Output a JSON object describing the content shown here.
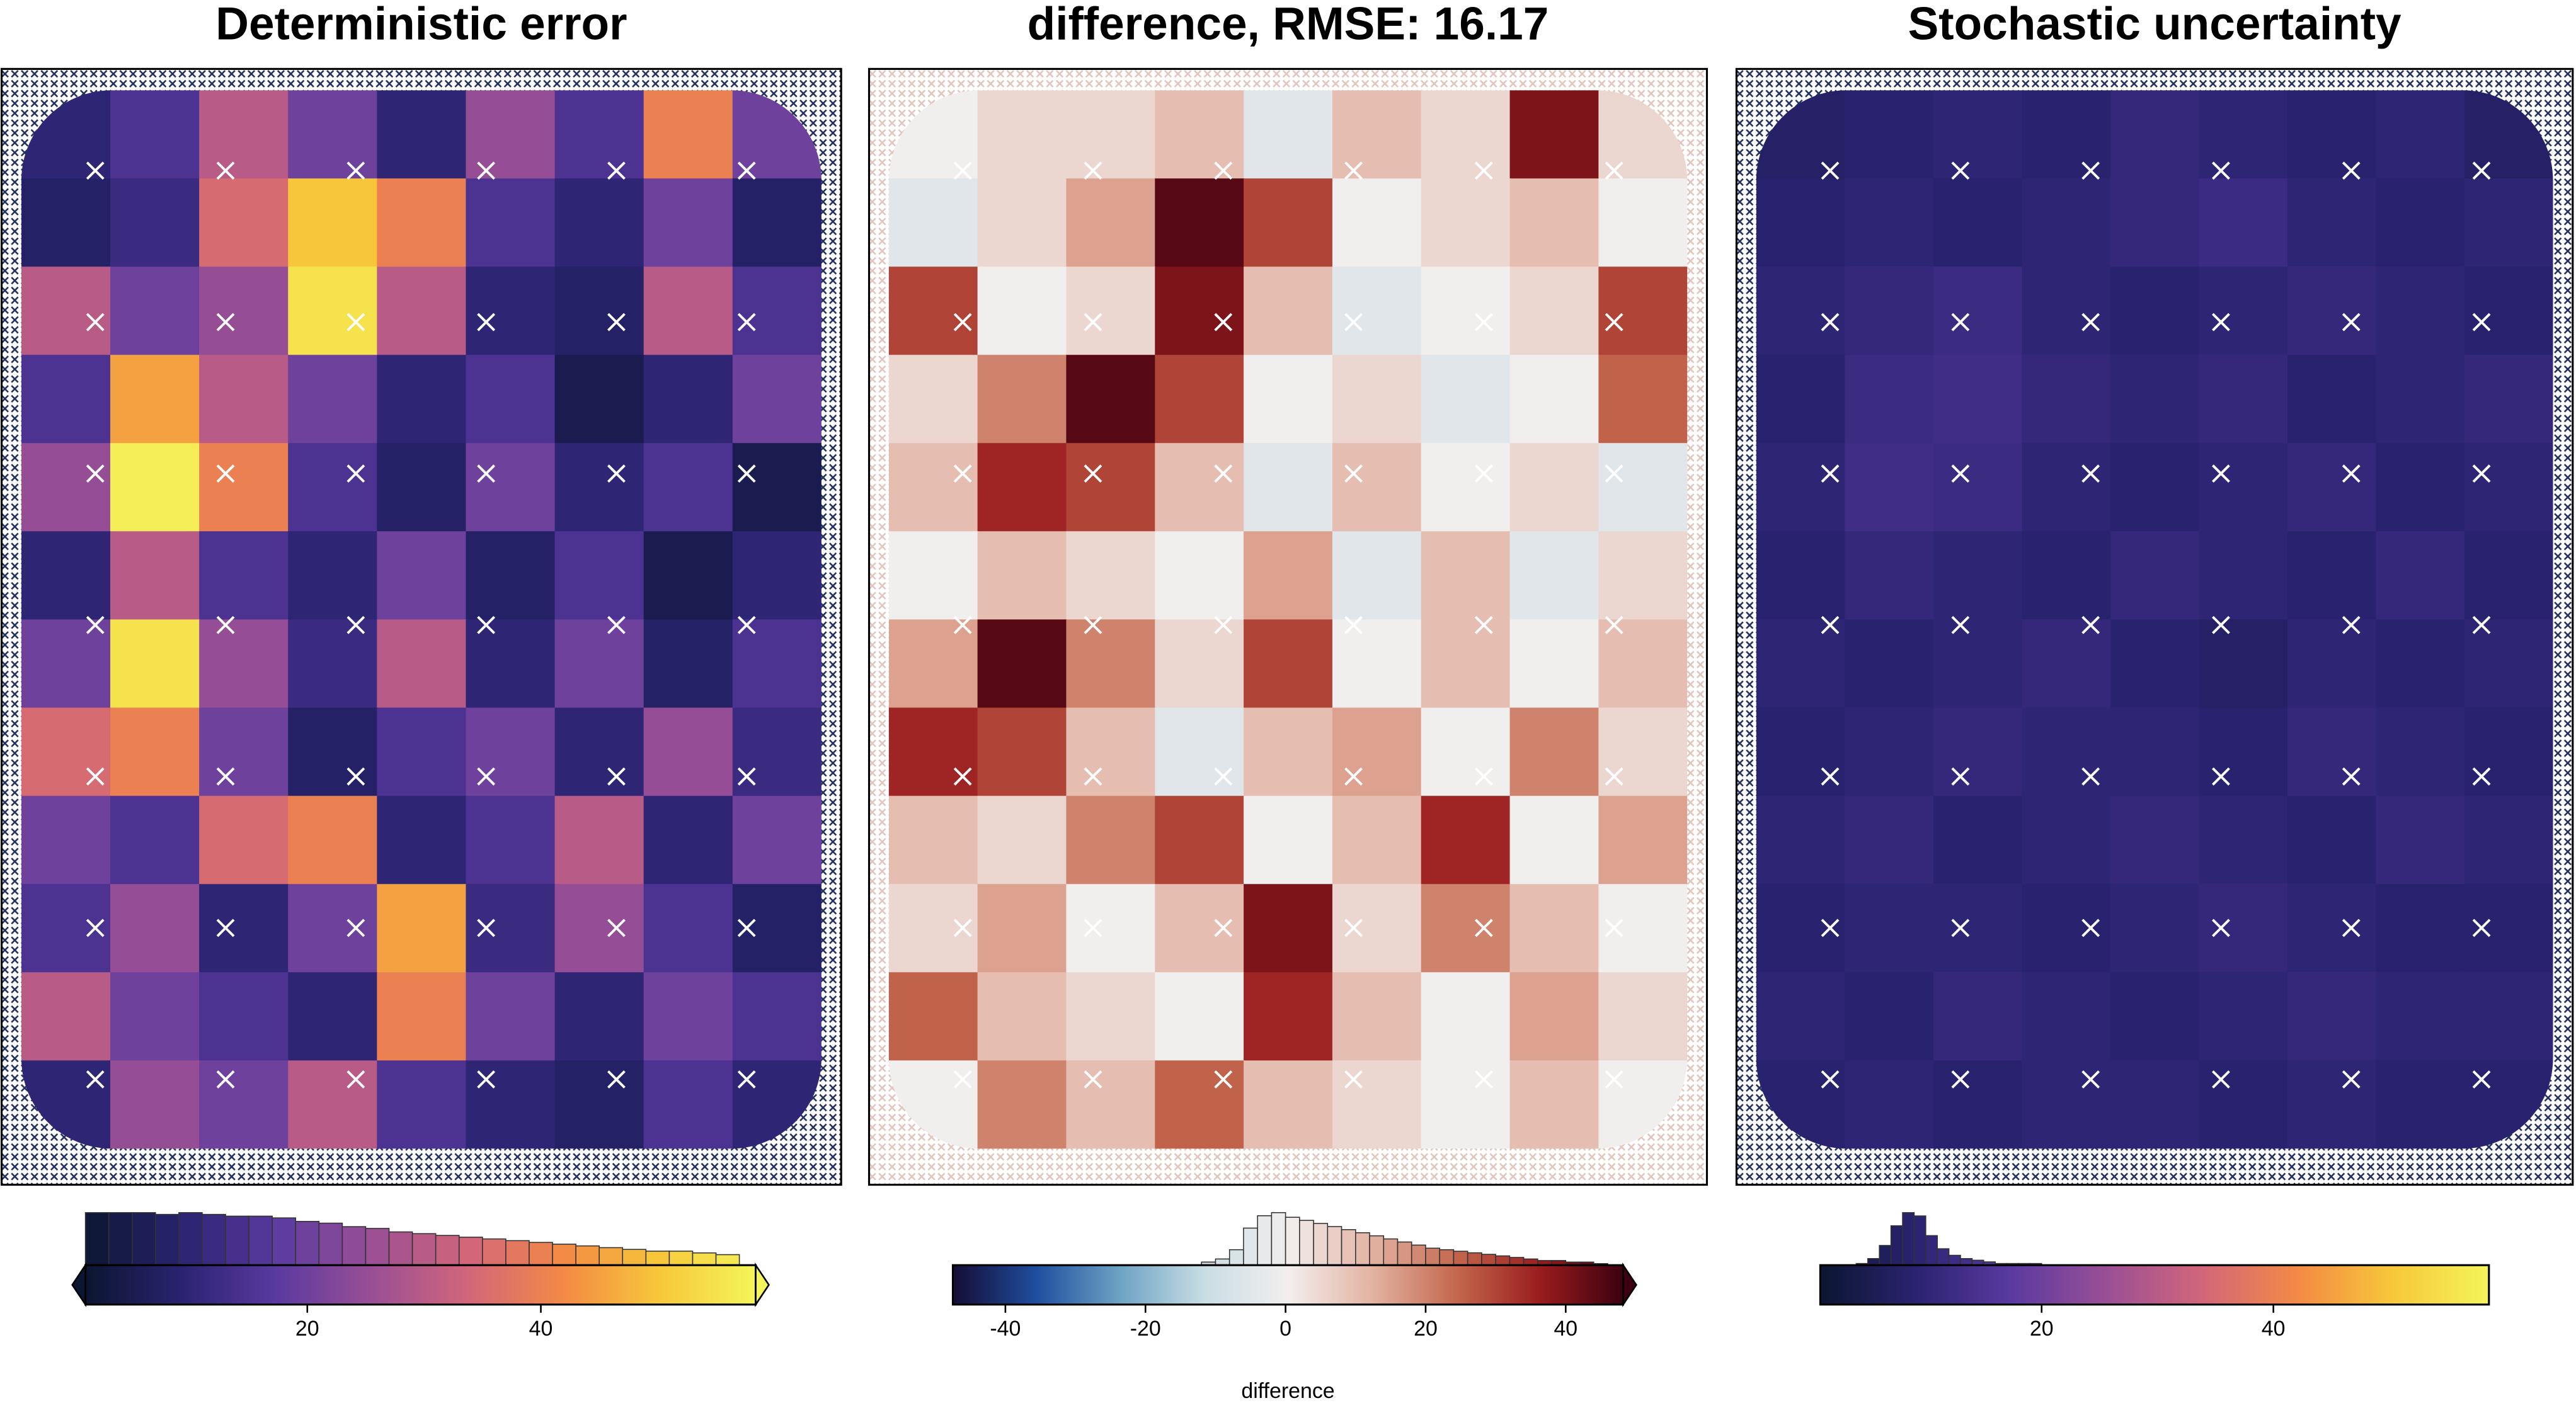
{
  "chart_data": [
    {
      "type": "heatmap",
      "title": "Deterministic error",
      "colormap": [
        "#0b1630",
        "#2a2370",
        "#5a3aa0",
        "#9a4f95",
        "#d2667a",
        "#f38a45",
        "#f7c83a",
        "#f4f55a"
      ],
      "clim": [
        1,
        58.4
      ],
      "extend": "both",
      "xticks": [
        20,
        40
      ],
      "values": [
        [
          10,
          15,
          30,
          20,
          10,
          25,
          15,
          40,
          20
        ],
        [
          8,
          12,
          35,
          50,
          40,
          15,
          10,
          20,
          8
        ],
        [
          30,
          20,
          25,
          55,
          30,
          10,
          8,
          30,
          15
        ],
        [
          15,
          45,
          30,
          20,
          10,
          15,
          5,
          10,
          20
        ],
        [
          25,
          57,
          40,
          15,
          8,
          20,
          10,
          15,
          5
        ],
        [
          10,
          30,
          15,
          10,
          20,
          8,
          15,
          5,
          10
        ],
        [
          20,
          55,
          25,
          12,
          30,
          10,
          20,
          8,
          15
        ],
        [
          35,
          40,
          20,
          8,
          15,
          20,
          10,
          25,
          12
        ],
        [
          20,
          15,
          35,
          40,
          10,
          15,
          30,
          10,
          20
        ],
        [
          15,
          25,
          10,
          20,
          45,
          12,
          25,
          15,
          8
        ],
        [
          30,
          20,
          15,
          10,
          40,
          20,
          10,
          20,
          15
        ],
        [
          10,
          25,
          20,
          30,
          15,
          10,
          8,
          15,
          10
        ]
      ],
      "histogram": {
        "bins": [
          1,
          3,
          5,
          7,
          9,
          11,
          13,
          15,
          17,
          19,
          21,
          23,
          25,
          27,
          29,
          31,
          33,
          35,
          37,
          39,
          41,
          43,
          45,
          47,
          49,
          51,
          53,
          55,
          57
        ],
        "counts": [
          30,
          30,
          30,
          29,
          30,
          29,
          28,
          28,
          27,
          25,
          24,
          22,
          21,
          19,
          18,
          17,
          16,
          15,
          14,
          13,
          12,
          11,
          10,
          9,
          8,
          8,
          7,
          6
        ]
      }
    },
    {
      "type": "heatmap",
      "title": "difference, RMSE: 16.17",
      "colormap": [
        "#150c35",
        "#1f4e9e",
        "#6ea3c4",
        "#c9dde4",
        "#f2eeee",
        "#e3b3a2",
        "#c4684e",
        "#9a1d1e",
        "#3d0010"
      ],
      "clim": [
        -47.5,
        48.2
      ],
      "extend": "max",
      "xticks": [
        -40,
        -20,
        0,
        20,
        40
      ],
      "xlabel": "difference",
      "values": [
        [
          0,
          5,
          5,
          10,
          -5,
          10,
          5,
          40,
          5
        ],
        [
          -5,
          5,
          15,
          45,
          30,
          0,
          5,
          10,
          0
        ],
        [
          30,
          0,
          5,
          40,
          10,
          -5,
          0,
          5,
          30
        ],
        [
          5,
          20,
          45,
          30,
          0,
          5,
          -5,
          0,
          25
        ],
        [
          10,
          35,
          30,
          10,
          -5,
          10,
          0,
          5,
          -5
        ],
        [
          0,
          10,
          5,
          0,
          15,
          -5,
          10,
          -5,
          5
        ],
        [
          15,
          45,
          20,
          5,
          30,
          0,
          10,
          0,
          10
        ],
        [
          35,
          30,
          10,
          -5,
          10,
          15,
          0,
          20,
          5
        ],
        [
          10,
          5,
          20,
          30,
          0,
          10,
          35,
          0,
          15
        ],
        [
          5,
          15,
          0,
          10,
          40,
          5,
          20,
          10,
          0
        ],
        [
          25,
          10,
          5,
          0,
          35,
          10,
          0,
          15,
          5
        ],
        [
          0,
          20,
          10,
          25,
          10,
          5,
          0,
          10,
          0
        ]
      ],
      "histogram": {
        "bins": [
          -12,
          -10,
          -8,
          -6,
          -4,
          -2,
          0,
          2,
          4,
          6,
          8,
          10,
          12,
          14,
          16,
          18,
          20,
          22,
          24,
          26,
          28,
          30,
          32,
          34,
          36,
          38,
          40,
          42,
          44,
          46
        ],
        "counts": [
          2,
          4,
          10,
          24,
          32,
          34,
          31,
          29,
          27,
          25,
          23,
          21,
          19,
          17,
          15,
          13,
          11,
          10,
          9,
          8,
          7,
          6,
          5,
          4,
          3,
          3,
          2,
          2,
          1
        ]
      }
    },
    {
      "type": "heatmap",
      "title": "Stochastic uncertainty",
      "colormap": [
        "#0b1630",
        "#2a2370",
        "#5a3aa0",
        "#9a4f95",
        "#d2667a",
        "#f38a45",
        "#f7c83a",
        "#f4f55a"
      ],
      "clim": [
        0.9,
        58.6
      ],
      "extend": "none",
      "xticks": [
        20,
        40
      ],
      "values": [
        [
          8,
          9,
          10,
          9,
          11,
          10,
          9,
          10,
          8
        ],
        [
          9,
          10,
          9,
          10,
          11,
          12,
          10,
          9,
          10
        ],
        [
          10,
          11,
          12,
          10,
          9,
          10,
          11,
          10,
          9
        ],
        [
          9,
          12,
          13,
          11,
          10,
          11,
          9,
          10,
          11
        ],
        [
          10,
          13,
          12,
          10,
          9,
          10,
          11,
          9,
          10
        ],
        [
          9,
          11,
          10,
          9,
          11,
          10,
          9,
          11,
          9
        ],
        [
          10,
          9,
          10,
          11,
          9,
          8,
          10,
          9,
          10
        ],
        [
          9,
          10,
          11,
          10,
          10,
          9,
          11,
          10,
          9
        ],
        [
          10,
          11,
          9,
          10,
          11,
          10,
          9,
          11,
          10
        ],
        [
          9,
          10,
          10,
          9,
          10,
          11,
          10,
          9,
          9
        ],
        [
          10,
          9,
          11,
          10,
          9,
          10,
          11,
          10,
          10
        ],
        [
          9,
          10,
          9,
          10,
          10,
          9,
          10,
          9,
          9
        ]
      ],
      "histogram": {
        "bins": [
          4,
          5,
          6,
          7,
          8,
          9,
          10,
          11,
          12,
          13,
          14,
          15,
          16,
          17,
          18,
          19,
          20
        ],
        "counts": [
          1,
          4,
          12,
          24,
          32,
          30,
          18,
          10,
          6,
          4,
          3,
          2,
          1,
          1,
          1,
          1
        ]
      }
    }
  ]
}
